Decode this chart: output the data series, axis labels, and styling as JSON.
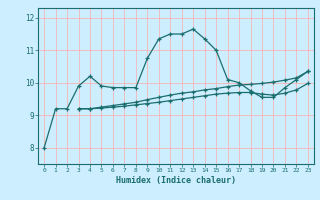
{
  "xlabel": "Humidex (Indice chaleur)",
  "background_color": "#cceeff",
  "grid_color": "#ffaaaa",
  "line_color": "#1a6e6e",
  "x_values": [
    0,
    1,
    2,
    3,
    4,
    5,
    6,
    7,
    8,
    9,
    10,
    11,
    12,
    13,
    14,
    15,
    16,
    17,
    18,
    19,
    20,
    21,
    22,
    23
  ],
  "line1": [
    8.0,
    9.2,
    9.2,
    9.9,
    10.2,
    9.9,
    9.85,
    9.85,
    9.85,
    10.75,
    11.35,
    11.5,
    11.5,
    11.65,
    11.35,
    11.0,
    10.1,
    10.0,
    9.75,
    9.55,
    9.55,
    9.85,
    10.1,
    10.35
  ],
  "line2": [
    null,
    null,
    null,
    9.2,
    9.2,
    9.25,
    9.3,
    9.35,
    9.4,
    9.48,
    9.55,
    9.62,
    9.68,
    9.72,
    9.78,
    9.82,
    9.88,
    9.93,
    9.95,
    9.98,
    10.02,
    10.08,
    10.15,
    10.35
  ],
  "line3": [
    null,
    null,
    null,
    9.2,
    9.2,
    9.22,
    9.25,
    9.28,
    9.32,
    9.36,
    9.4,
    9.45,
    9.5,
    9.55,
    9.6,
    9.65,
    9.68,
    9.7,
    9.7,
    9.65,
    9.62,
    9.68,
    9.78,
    9.98
  ],
  "ylim": [
    7.5,
    12.3
  ],
  "yticks": [
    8,
    9,
    10,
    11,
    12
  ],
  "xlim": [
    -0.5,
    23.5
  ]
}
